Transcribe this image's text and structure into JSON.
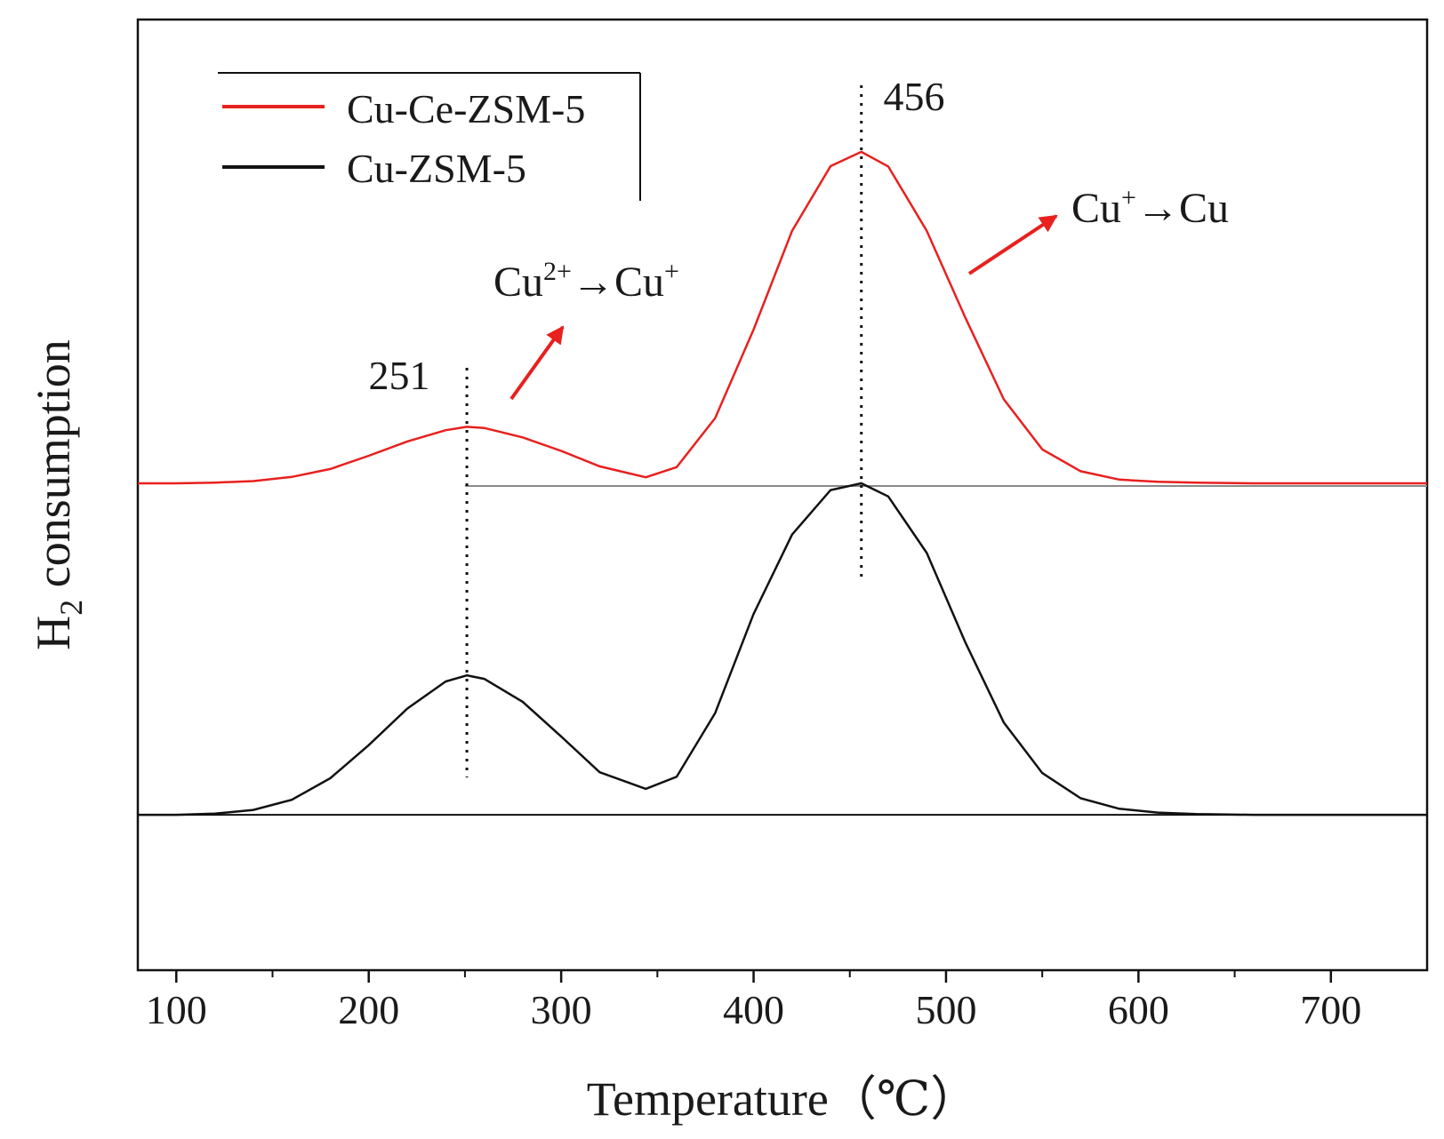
{
  "chart_data": {
    "type": "line",
    "title": "",
    "xlabel": "Temperature（℃）",
    "ylabel_main": "H",
    "ylabel_sub": "2",
    "ylabel_rest": " consumption",
    "xlim": [
      80,
      750
    ],
    "x_ticks": [
      100,
      200,
      300,
      400,
      500,
      600,
      700
    ],
    "x_minor_ticks": [
      150,
      250,
      350,
      450,
      550,
      650
    ],
    "y_ticks_shown": false,
    "grid": false,
    "legend_position": "top-left",
    "x": [
      80,
      100,
      120,
      140,
      160,
      180,
      200,
      220,
      240,
      251,
      260,
      280,
      300,
      320,
      344,
      360,
      380,
      400,
      420,
      440,
      456,
      470,
      490,
      510,
      530,
      550,
      570,
      590,
      610,
      630,
      660,
      700,
      750
    ],
    "series": [
      {
        "name": "Cu-Ce-ZSM-5",
        "color": "#e8201e",
        "baseline_signal": 0,
        "values": [
          0,
          0,
          0.2,
          0.6,
          1.7,
          3.8,
          7.3,
          11.1,
          14.1,
          15.0,
          14.7,
          12.2,
          8.6,
          4.5,
          1.6,
          4.3,
          17.3,
          40.8,
          67.0,
          84.2,
          88.0,
          84.1,
          67.0,
          44.0,
          22.3,
          9.0,
          3.2,
          1.0,
          0.4,
          0.2,
          0,
          0,
          0
        ]
      },
      {
        "name": "Cu-ZSM-5",
        "color": "#111111",
        "baseline_signal": -88,
        "values": [
          -88,
          -88,
          -87.7,
          -86.7,
          -84.0,
          -78.3,
          -69.5,
          -59.8,
          -52.6,
          -51.0,
          -51.9,
          -58.0,
          -67.2,
          -76.7,
          -81.1,
          -77.9,
          -61.0,
          -34.7,
          -13.6,
          -1.8,
          0,
          -3.5,
          -18.5,
          -42.2,
          -63.5,
          -76.9,
          -83.6,
          -86.4,
          -87.4,
          -87.8,
          -88,
          -88,
          -88
        ]
      }
    ],
    "peak_labels": [
      {
        "text": "251",
        "x": 251
      },
      {
        "text": "456",
        "x": 456
      }
    ],
    "annotations": [
      {
        "from": "Cu",
        "from_sup": "2+",
        "arrow": "→",
        "to": "Cu",
        "to_sup": "+"
      },
      {
        "from": "Cu",
        "from_sup": "+",
        "arrow": "→",
        "to": "Cu",
        "to_sup": ""
      }
    ]
  }
}
